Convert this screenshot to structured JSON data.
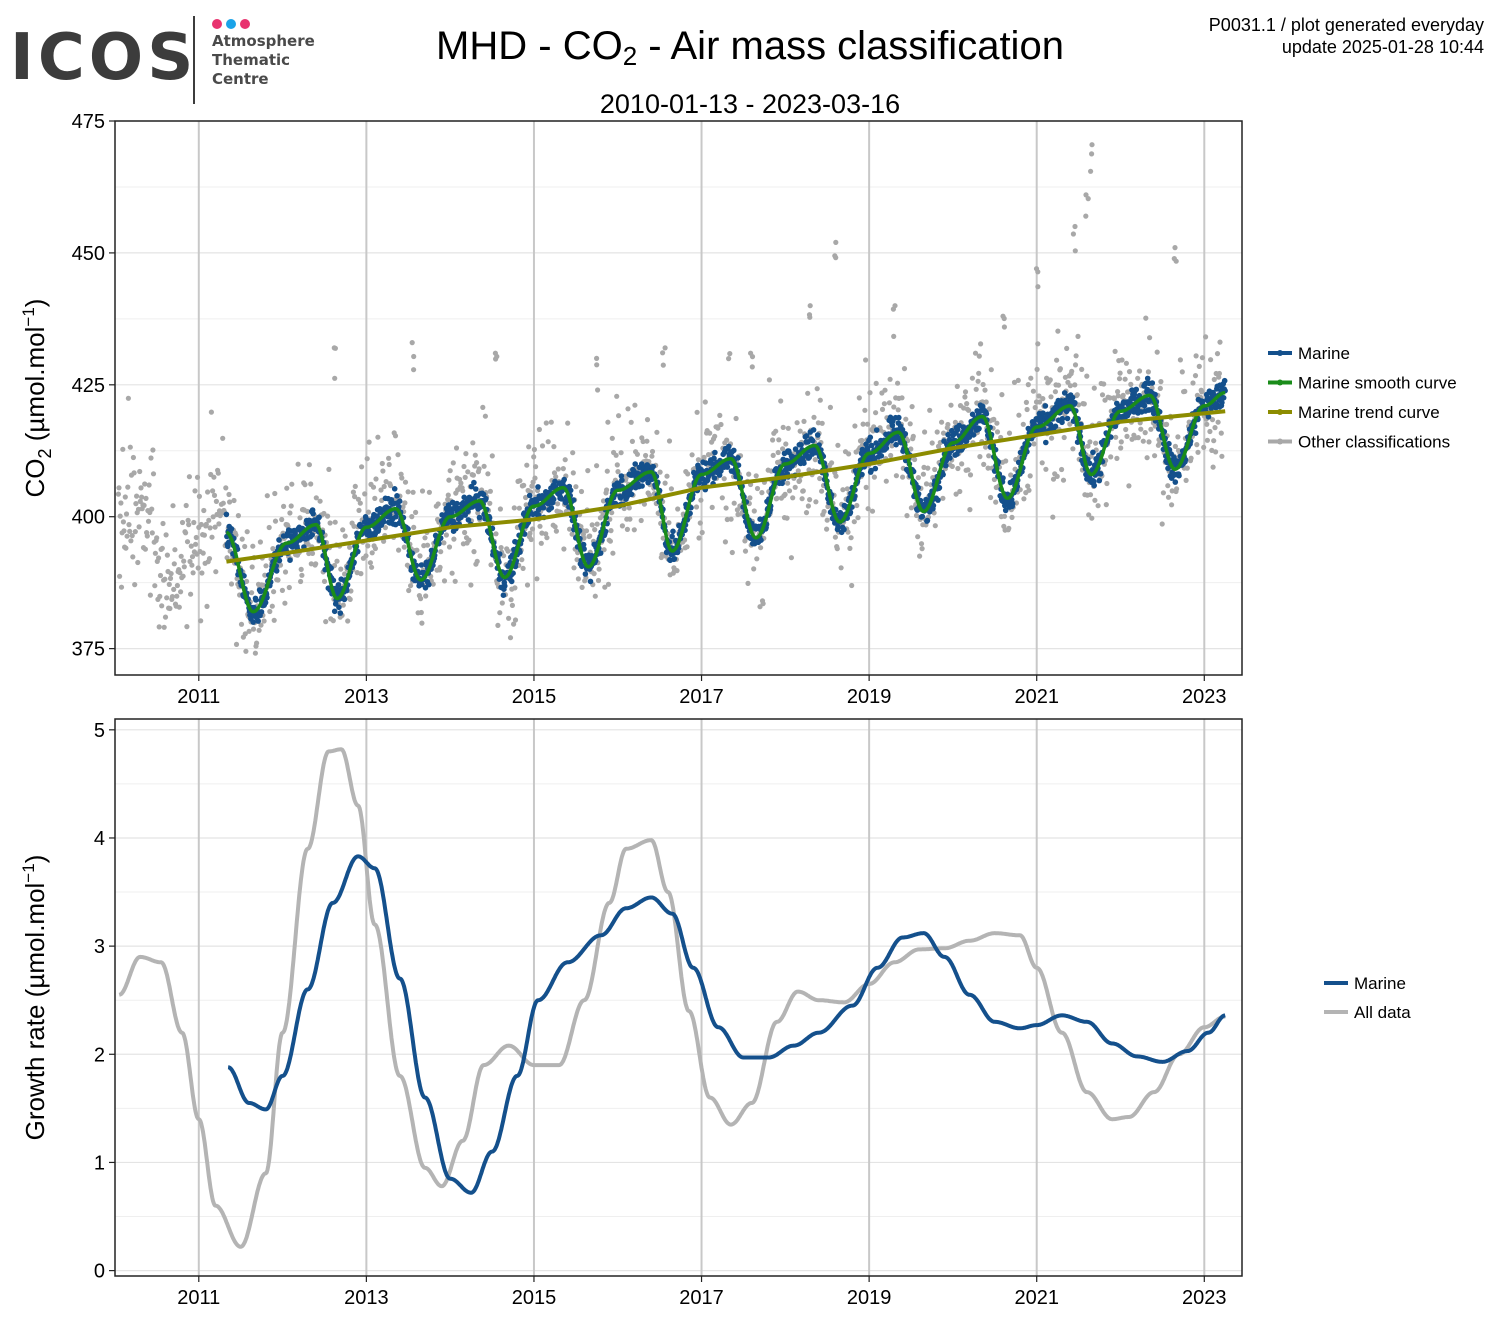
{
  "logo": {
    "word": "ICOS",
    "lines": [
      "Atmosphere",
      "Thematic",
      "Centre"
    ],
    "dot_colors": [
      "#e8336f",
      "#1aa3e8",
      "#e8336f"
    ]
  },
  "header": {
    "title_pre": "MHD - CO",
    "title_sub": "2",
    "title_post": " - Air mass classification",
    "subtitle": "2010-01-13 - 2023-03-16",
    "meta_line1": "P0031.1 / plot generated everyday",
    "meta_line2": "update  2025-01-28 10:44"
  },
  "chart_data": [
    {
      "type": "scatter",
      "ylabel_pre": "CO",
      "ylabel_sub": "2",
      "ylabel_post": " (µmol.mol",
      "ylabel_sup": "−1",
      "ylabel_end": ")",
      "xlim": [
        2010.0,
        2023.45
      ],
      "ylim": [
        370,
        475
      ],
      "yticks": [
        375,
        400,
        425,
        450,
        475
      ],
      "xticks": [
        2011,
        2013,
        2015,
        2017,
        2019,
        2021,
        2023
      ],
      "grid": true,
      "legend_position": "right",
      "series": [
        {
          "name": "Marine",
          "color": "#14508c",
          "kind": "points",
          "start": 2011.33,
          "end": 2023.25
        },
        {
          "name": "Marine smooth curve",
          "color": "#1a8c1a",
          "kind": "line",
          "start": 2011.33,
          "end": 2023.25
        },
        {
          "name": "Marine trend curve",
          "color": "#8c8c00",
          "kind": "line",
          "x": [
            2011.33,
            2012,
            2013,
            2014,
            2015,
            2016,
            2017,
            2018,
            2019,
            2020,
            2021,
            2022,
            2023.25
          ],
          "y": [
            391.5,
            393,
            395.5,
            398,
            399.5,
            402,
            405.5,
            407.5,
            410,
            413,
            415.5,
            418,
            420
          ]
        },
        {
          "name": "Other classifications",
          "color": "#a8a8a8",
          "kind": "points",
          "start": 2010.04,
          "end": 2023.21
        }
      ],
      "smooth_curve": {
        "x": [
          2011.33,
          2011.65,
          2012.05,
          2012.4,
          2012.65,
          2013.0,
          2013.35,
          2013.65,
          2014.0,
          2014.35,
          2014.65,
          2015.0,
          2015.35,
          2015.65,
          2016.0,
          2016.4,
          2016.65,
          2017.0,
          2017.35,
          2017.65,
          2018.0,
          2018.35,
          2018.65,
          2019.0,
          2019.35,
          2019.65,
          2020.0,
          2020.35,
          2020.65,
          2021.0,
          2021.4,
          2021.65,
          2022.0,
          2022.35,
          2022.65,
          2023.0,
          2023.25
        ],
        "y": [
          397,
          382,
          395,
          398.5,
          384.5,
          398,
          401.5,
          388,
          400,
          403,
          388.5,
          402,
          405.5,
          390.5,
          405,
          408.5,
          393.5,
          408,
          411,
          396,
          410,
          413.5,
          399,
          412,
          416,
          401,
          414,
          419,
          403.5,
          417,
          421,
          408,
          420,
          423,
          409,
          421,
          423.5
        ]
      },
      "spikes": [
        {
          "x": 2012.63,
          "y": 432
        },
        {
          "x": 2013.55,
          "y": 433
        },
        {
          "x": 2014.55,
          "y": 431
        },
        {
          "x": 2015.75,
          "y": 430
        },
        {
          "x": 2016.55,
          "y": 432
        },
        {
          "x": 2017.6,
          "y": 431
        },
        {
          "x": 2018.3,
          "y": 440
        },
        {
          "x": 2018.6,
          "y": 452
        },
        {
          "x": 2019.3,
          "y": 440
        },
        {
          "x": 2020.6,
          "y": 438
        },
        {
          "x": 2021.0,
          "y": 447
        },
        {
          "x": 2021.45,
          "y": 455
        },
        {
          "x": 2021.6,
          "y": 461
        },
        {
          "x": 2021.65,
          "y": 470.5
        },
        {
          "x": 2022.65,
          "y": 451
        }
      ]
    },
    {
      "type": "line",
      "ylabel_pre": "Growth rate (µmol.mol",
      "ylabel_sup": "−1",
      "ylabel_end": ")",
      "xlim": [
        2010.0,
        2023.45
      ],
      "ylim": [
        -0.05,
        5.1
      ],
      "yticks": [
        0,
        1,
        2,
        3,
        4,
        5
      ],
      "xticks": [
        2011,
        2013,
        2015,
        2017,
        2019,
        2021,
        2023
      ],
      "grid": true,
      "legend_position": "right",
      "series": [
        {
          "name": "Marine",
          "color": "#14508c",
          "x": [
            2011.35,
            2011.6,
            2011.8,
            2012.0,
            2012.3,
            2012.6,
            2012.9,
            2013.1,
            2013.4,
            2013.7,
            2014.0,
            2014.25,
            2014.5,
            2014.8,
            2015.05,
            2015.4,
            2015.8,
            2016.1,
            2016.4,
            2016.65,
            2016.9,
            2017.2,
            2017.5,
            2017.8,
            2018.1,
            2018.4,
            2018.8,
            2019.1,
            2019.4,
            2019.65,
            2019.9,
            2020.2,
            2020.5,
            2020.8,
            2021.0,
            2021.3,
            2021.6,
            2021.9,
            2022.2,
            2022.5,
            2022.8,
            2023.05,
            2023.25
          ],
          "y": [
            1.88,
            1.55,
            1.49,
            1.8,
            2.6,
            3.4,
            3.83,
            3.72,
            2.7,
            1.6,
            0.85,
            0.72,
            1.1,
            1.8,
            2.5,
            2.85,
            3.1,
            3.35,
            3.45,
            3.3,
            2.8,
            2.25,
            1.97,
            1.97,
            2.08,
            2.2,
            2.45,
            2.8,
            3.08,
            3.12,
            2.9,
            2.55,
            2.3,
            2.24,
            2.27,
            2.36,
            2.3,
            2.1,
            1.98,
            1.93,
            2.03,
            2.2,
            2.36
          ]
        },
        {
          "name": "All data",
          "color": "#b4b4b4",
          "x": [
            2010.05,
            2010.3,
            2010.55,
            2010.8,
            2011.0,
            2011.2,
            2011.5,
            2011.8,
            2012.0,
            2012.3,
            2012.55,
            2012.7,
            2012.9,
            2013.1,
            2013.4,
            2013.7,
            2013.9,
            2014.15,
            2014.4,
            2014.7,
            2015.0,
            2015.3,
            2015.6,
            2015.9,
            2016.1,
            2016.4,
            2016.6,
            2016.85,
            2017.1,
            2017.35,
            2017.6,
            2017.9,
            2018.15,
            2018.4,
            2018.7,
            2019.0,
            2019.3,
            2019.6,
            2019.9,
            2020.2,
            2020.5,
            2020.8,
            2021.0,
            2021.3,
            2021.6,
            2021.9,
            2022.1,
            2022.4,
            2022.7,
            2023.0,
            2023.25
          ],
          "y": [
            2.55,
            2.9,
            2.85,
            2.2,
            1.4,
            0.6,
            0.22,
            0.9,
            2.2,
            3.9,
            4.8,
            4.82,
            4.3,
            3.2,
            1.8,
            0.95,
            0.78,
            1.2,
            1.9,
            2.08,
            1.9,
            1.9,
            2.5,
            3.4,
            3.9,
            3.98,
            3.5,
            2.4,
            1.6,
            1.35,
            1.55,
            2.3,
            2.58,
            2.5,
            2.48,
            2.65,
            2.85,
            2.97,
            2.98,
            3.05,
            3.12,
            3.1,
            2.8,
            2.2,
            1.65,
            1.4,
            1.42,
            1.65,
            2.0,
            2.25,
            2.35
          ]
        }
      ]
    }
  ]
}
